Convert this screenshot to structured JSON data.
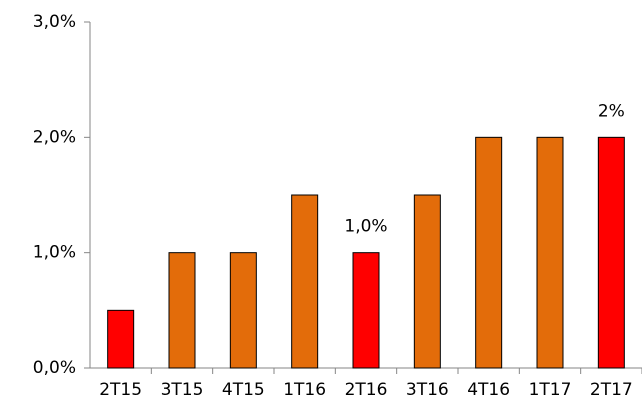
{
  "chart_data": {
    "type": "bar",
    "categories": [
      "2T15",
      "3T15",
      "4T15",
      "1T16",
      "2T16",
      "3T16",
      "4T16",
      "1T17",
      "2T17"
    ],
    "values": [
      0.5,
      1,
      1,
      1.5,
      1,
      1.5,
      2,
      2,
      2
    ],
    "value_labels": [
      null,
      null,
      null,
      null,
      "1,0%",
      null,
      null,
      null,
      "2%"
    ],
    "colors": [
      "#ff0000",
      "#e36c0a",
      "#e36c0a",
      "#e36c0a",
      "#ff0000",
      "#e36c0a",
      "#e36c0a",
      "#e36c0a",
      "#ff0000"
    ],
    "ylim": [
      0,
      3
    ],
    "yticks": [
      {
        "value": 0,
        "label": "0,0%"
      },
      {
        "value": 1,
        "label": "1,0%"
      },
      {
        "value": 2,
        "label": "2,0%"
      },
      {
        "value": 3,
        "label": "3,0%"
      }
    ],
    "grid": false
  }
}
